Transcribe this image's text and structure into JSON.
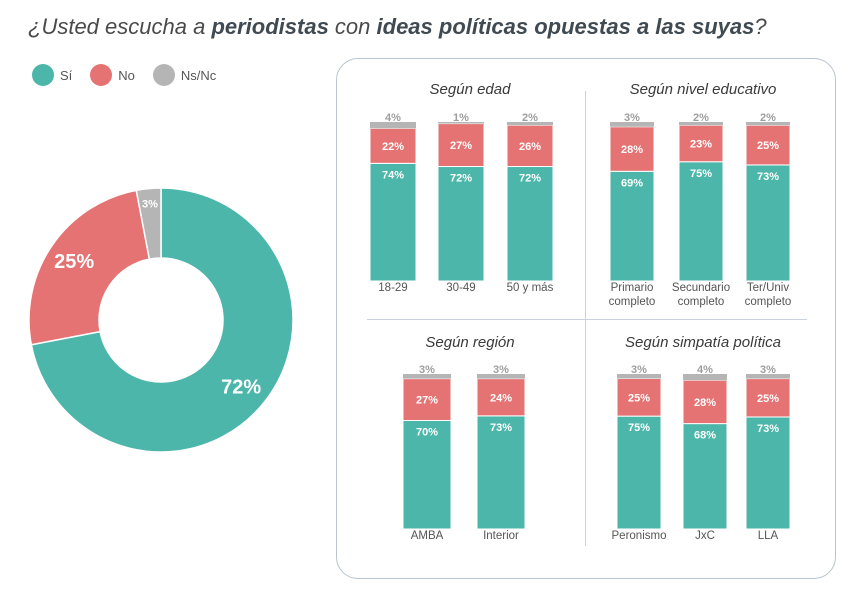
{
  "title": {
    "prefix": "¿Usted escucha a ",
    "bold1": "periodistas",
    "mid": " con ",
    "bold2": "ideas políticas opuestas a las suyas",
    "suffix": "?"
  },
  "colors": {
    "si": "#4db6aa",
    "no": "#e57373",
    "ns": "#b5b5b5",
    "label_ns": "#9e9e9e"
  },
  "legend": [
    {
      "label": "Sí",
      "color": "#4db6aa"
    },
    {
      "label": "No",
      "color": "#e57373"
    },
    {
      "label": "Ns/Nc",
      "color": "#b5b5b5"
    }
  ],
  "chart_data": [
    {
      "type": "pie",
      "variant": "donut",
      "labels": [
        "Sí",
        "No",
        "Ns/Nc"
      ],
      "values": [
        72,
        25,
        3
      ],
      "value_labels": [
        "72%",
        "25%",
        "3%"
      ]
    },
    {
      "type": "bar",
      "stacked": true,
      "title": "Según edad",
      "categories": [
        "18-29",
        "30-49",
        "50 y más"
      ],
      "series": [
        {
          "name": "Sí",
          "values": [
            74,
            72,
            72
          ]
        },
        {
          "name": "No",
          "values": [
            22,
            27,
            26
          ]
        },
        {
          "name": "Ns/Nc",
          "values": [
            4,
            1,
            2
          ]
        }
      ]
    },
    {
      "type": "bar",
      "stacked": true,
      "title": "Según nivel educativo",
      "categories": [
        "Primario completo",
        "Secundario completo",
        "Ter/Univ completo"
      ],
      "series": [
        {
          "name": "Sí",
          "values": [
            69,
            75,
            73
          ]
        },
        {
          "name": "No",
          "values": [
            28,
            23,
            25
          ]
        },
        {
          "name": "Ns/Nc",
          "values": [
            3,
            2,
            2
          ]
        }
      ]
    },
    {
      "type": "bar",
      "stacked": true,
      "title": "Según región",
      "categories": [
        "AMBA",
        "Interior"
      ],
      "series": [
        {
          "name": "Sí",
          "values": [
            70,
            73
          ]
        },
        {
          "name": "No",
          "values": [
            27,
            24
          ]
        },
        {
          "name": "Ns/Nc",
          "values": [
            3,
            3
          ]
        }
      ]
    },
    {
      "type": "bar",
      "stacked": true,
      "title": "Según simpatía política",
      "categories": [
        "Peronismo",
        "JxC",
        "LLA"
      ],
      "series": [
        {
          "name": "Sí",
          "values": [
            75,
            68,
            73
          ]
        },
        {
          "name": "No",
          "values": [
            25,
            28,
            25
          ]
        },
        {
          "name": "Ns/Nc",
          "values": [
            3,
            4,
            3
          ]
        }
      ]
    }
  ]
}
